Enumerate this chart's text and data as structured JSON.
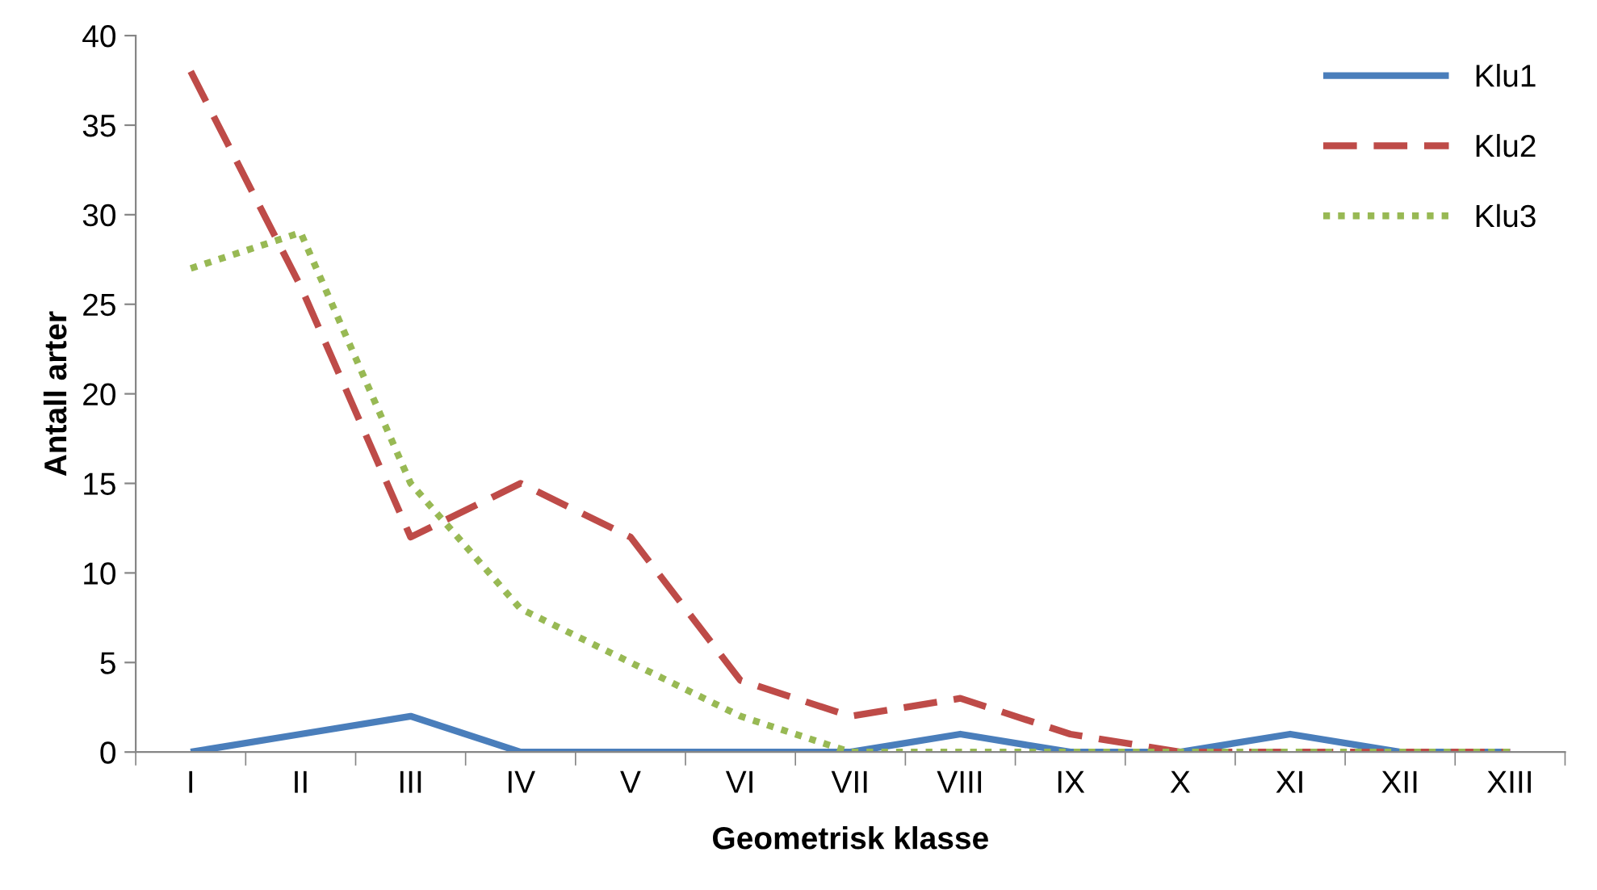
{
  "chart_data": {
    "type": "line",
    "xlabel": "Geometrisk klasse",
    "ylabel": "Antall arter",
    "categories": [
      "I",
      "II",
      "III",
      "IV",
      "V",
      "VI",
      "VII",
      "VIII",
      "IX",
      "X",
      "XI",
      "XII",
      "XIII"
    ],
    "series": [
      {
        "name": "Klu1",
        "color": "#4a7ebb",
        "line_style": "solid",
        "values": [
          0,
          1,
          2,
          0,
          0,
          0,
          0,
          1,
          0,
          0,
          1,
          0,
          0
        ]
      },
      {
        "name": "Klu2",
        "color": "#be4b48",
        "line_style": "dashed",
        "values": [
          38,
          26,
          12,
          15,
          12,
          4,
          2,
          3,
          1,
          0,
          0,
          0,
          0
        ]
      },
      {
        "name": "Klu3",
        "color": "#98b954",
        "line_style": "dotted",
        "values": [
          27,
          29,
          15,
          8,
          5,
          2,
          0,
          0,
          0,
          0,
          0,
          0,
          0
        ]
      }
    ],
    "ylim": [
      0,
      40
    ],
    "yticks": [
      0,
      5,
      10,
      15,
      20,
      25,
      30,
      35,
      40
    ],
    "grid": false,
    "legend": "top right",
    "marker": "none"
  }
}
